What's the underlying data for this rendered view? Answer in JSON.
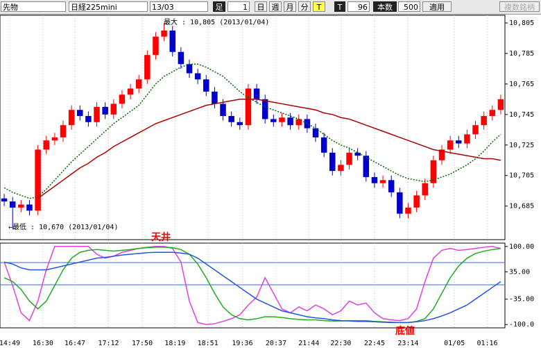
{
  "toolbar": {
    "market": "先物",
    "symbol": "日経225mini",
    "contract": "13/03",
    "ashi": "足",
    "ashi_value": 1,
    "periods": [
      "日",
      "週",
      "月",
      "分",
      "T"
    ],
    "t_label": "T",
    "t_value": 96,
    "count_label": "本数",
    "count_value": 500,
    "apply": "適用",
    "multi": "複数銘柄"
  },
  "chart_data": [
    {
      "type": "candlestick",
      "up_color": "#ff0000",
      "down_color": "#0000cc",
      "annotations": [
        "最大 : 10,805 (2013/01/04)",
        "←最低 : 10,670 (2013/01/04)"
      ],
      "xlim": [
        0,
        60
      ],
      "xticks": [
        {
          "value": 1.15,
          "label": "14:49"
        },
        {
          "value": 5.1,
          "label": "16:30"
        },
        {
          "value": 8.9,
          "label": "16:47"
        },
        {
          "value": 12.9,
          "label": "17:12"
        },
        {
          "value": 16.9,
          "label": "17:50"
        },
        {
          "value": 20.8,
          "label": "18:19"
        },
        {
          "value": 24.7,
          "label": "18:51"
        },
        {
          "value": 28.8,
          "label": "19:36"
        },
        {
          "value": 32.8,
          "label": "20:37"
        },
        {
          "value": 36.7,
          "label": "21:44"
        },
        {
          "value": 40.5,
          "label": "22:30"
        },
        {
          "value": 44.5,
          "label": "22:45"
        },
        {
          "value": 48.5,
          "label": "23:14"
        },
        {
          "value": 54.0,
          "label": "01/05"
        },
        {
          "value": 57.9,
          "label": "01:16"
        }
      ],
      "ylim": [
        10663,
        10810
      ],
      "yticks": [
        {
          "value": 10685,
          "label": "10,685"
        },
        {
          "value": 10705,
          "label": "10,705"
        },
        {
          "value": 10725,
          "label": "10,725"
        },
        {
          "value": 10745,
          "label": "10,745"
        },
        {
          "value": 10765,
          "label": "10,765"
        },
        {
          "value": 10785,
          "label": "10,785"
        },
        {
          "value": 10805,
          "label": "10,805"
        }
      ],
      "open": [
        10690,
        10688,
        10684,
        10686,
        10682,
        10722,
        10728,
        10730,
        10738,
        10748,
        10744,
        10740,
        10750,
        10745,
        10752,
        10758,
        10762,
        10768,
        10784,
        10796,
        10800,
        10786,
        10778,
        10772,
        10768,
        10760,
        10752,
        10744,
        10740,
        10738,
        10762,
        10755,
        10742,
        10740,
        10743,
        10738,
        10742,
        10736,
        10730,
        10720,
        10708,
        10712,
        10720,
        10718,
        10704,
        10700,
        10702,
        10694,
        10680,
        10684,
        10692,
        10700,
        10715,
        10722,
        10728,
        10726,
        10732,
        10738,
        10744,
        10748
      ],
      "high": [
        10693,
        10691,
        10689,
        10689,
        10725,
        10731,
        10733,
        10741,
        10751,
        10751,
        10747,
        10753,
        10753,
        10755,
        10761,
        10765,
        10771,
        10787,
        10799,
        10805,
        10803,
        10789,
        10781,
        10775,
        10771,
        10763,
        10755,
        10747,
        10743,
        10765,
        10765,
        10758,
        10745,
        10746,
        10746,
        10745,
        10745,
        10739,
        10733,
        10723,
        10715,
        10723,
        10723,
        10721,
        10707,
        10705,
        10705,
        10697,
        10687,
        10695,
        10703,
        10718,
        10725,
        10731,
        10731,
        10735,
        10741,
        10747,
        10751,
        10758
      ],
      "low": [
        10685,
        10670,
        10681,
        10679,
        10679,
        10719,
        10725,
        10727,
        10735,
        10741,
        10737,
        10737,
        10742,
        10742,
        10749,
        10755,
        10759,
        10765,
        10781,
        10793,
        10783,
        10775,
        10769,
        10765,
        10757,
        10749,
        10741,
        10737,
        10735,
        10735,
        10752,
        10739,
        10737,
        10737,
        10735,
        10735,
        10733,
        10727,
        10717,
        10705,
        10705,
        10709,
        10715,
        10701,
        10697,
        10697,
        10691,
        10677,
        10677,
        10681,
        10689,
        10697,
        10712,
        10719,
        10723,
        10723,
        10729,
        10735,
        10741,
        10745
      ],
      "close": [
        10688,
        10684,
        10686,
        10682,
        10722,
        10728,
        10730,
        10738,
        10748,
        10744,
        10740,
        10750,
        10745,
        10752,
        10758,
        10762,
        10768,
        10784,
        10796,
        10800,
        10786,
        10778,
        10772,
        10768,
        10760,
        10752,
        10744,
        10740,
        10738,
        10762,
        10755,
        10742,
        10740,
        10743,
        10738,
        10742,
        10736,
        10730,
        10720,
        10708,
        10712,
        10720,
        10718,
        10704,
        10700,
        10702,
        10694,
        10680,
        10684,
        10692,
        10700,
        10715,
        10722,
        10728,
        10726,
        10732,
        10738,
        10744,
        10748,
        10755
      ],
      "series": [
        {
          "color": "#006600",
          "dashed": true,
          "values": [
            10697,
            10694,
            10692,
            10690,
            10691,
            10696,
            10702,
            10708,
            10714,
            10719,
            10724,
            10729,
            10734,
            10739,
            10743,
            10747,
            10751,
            10758,
            10765,
            10770,
            10773,
            10776,
            10778,
            10778,
            10776,
            10773,
            10770,
            10765,
            10760,
            10756,
            10753,
            10750,
            10748,
            10746,
            10744,
            10742,
            10739,
            10736,
            10732,
            10728,
            10725,
            10723,
            10720,
            10717,
            10714,
            10711,
            10708,
            10705,
            10703,
            10702,
            10701,
            10702,
            10704,
            10706,
            10709,
            10712,
            10716,
            10721,
            10727,
            10732
          ]
        },
        {
          "color": "#aa0000",
          "dashed": false,
          "values": [
            null,
            null,
            null,
            null,
            10690,
            10694,
            10698,
            10702,
            10706,
            10710,
            10713,
            10717,
            10720,
            10724,
            10727,
            10730,
            10733,
            10736,
            10739,
            10741,
            10743,
            10745,
            10747,
            10749,
            10751,
            10752,
            10753,
            10754,
            10755,
            10755,
            10755,
            10754,
            10753,
            10752,
            10751,
            10750,
            10749,
            10748,
            10746,
            10745,
            10743,
            10742,
            10740,
            10738,
            10736,
            10734,
            10732,
            10730,
            10728,
            10726,
            10724,
            10722,
            10721,
            10720,
            10719,
            10718,
            10717,
            10716,
            10716,
            10715
          ]
        }
      ]
    },
    {
      "type": "line",
      "annotations": [
        "天井",
        "底値"
      ],
      "xlim": [
        0,
        60
      ],
      "ylim": [
        -105,
        105
      ],
      "yticks": [
        {
          "value": 100,
          "label": "100.00"
        },
        {
          "value": 35,
          "label": "35.00"
        },
        {
          "value": -35,
          "label": "-35.00"
        },
        {
          "value": -100,
          "label": "-100.0"
        }
      ],
      "series": [
        {
          "color": "#e040e0",
          "values": [
            60,
            0,
            -70,
            -90,
            -40,
            40,
            100,
            100,
            100,
            100,
            100,
            80,
            70,
            75,
            85,
            90,
            95,
            98,
            100,
            100,
            95,
            60,
            -40,
            -95,
            -100,
            -98,
            -92,
            -85,
            -75,
            -50,
            -30,
            20,
            -20,
            -60,
            -70,
            -55,
            -65,
            -50,
            -60,
            -75,
            -65,
            -40,
            -50,
            -45,
            -70,
            -85,
            -88,
            -90,
            -85,
            -60,
            10,
            70,
            90,
            95,
            90,
            92,
            95,
            98,
            100,
            95
          ]
        },
        {
          "color": "#22aa22",
          "values": [
            20,
            10,
            -10,
            -40,
            -60,
            -40,
            0,
            40,
            70,
            85,
            90,
            92,
            90,
            88,
            90,
            92,
            95,
            97,
            98,
            98,
            97,
            92,
            80,
            55,
            20,
            -20,
            -55,
            -75,
            -85,
            -88,
            -85,
            -80,
            -80,
            -82,
            -85,
            -87,
            -88,
            -88,
            -90,
            -91,
            -91,
            -90,
            -90,
            -90,
            -92,
            -93,
            -94,
            -95,
            -95,
            -92,
            -85,
            -60,
            -20,
            20,
            50,
            70,
            82,
            88,
            92,
            95
          ]
        },
        {
          "color": "#2255dd",
          "values": [
            60,
            55,
            45,
            40,
            40,
            40,
            45,
            50,
            55,
            60,
            65,
            70,
            72,
            75,
            78,
            80,
            82,
            84,
            85,
            85,
            85,
            83,
            80,
            70,
            55,
            40,
            25,
            10,
            -5,
            -20,
            -35,
            -45,
            -55,
            -65,
            -70,
            -75,
            -80,
            -83,
            -85,
            -88,
            -90,
            -91,
            -92,
            -92,
            -93,
            -94,
            -95,
            -95,
            -95,
            -93,
            -90,
            -85,
            -78,
            -70,
            -60,
            -50,
            -35,
            -20,
            -5,
            10
          ]
        }
      ]
    }
  ]
}
